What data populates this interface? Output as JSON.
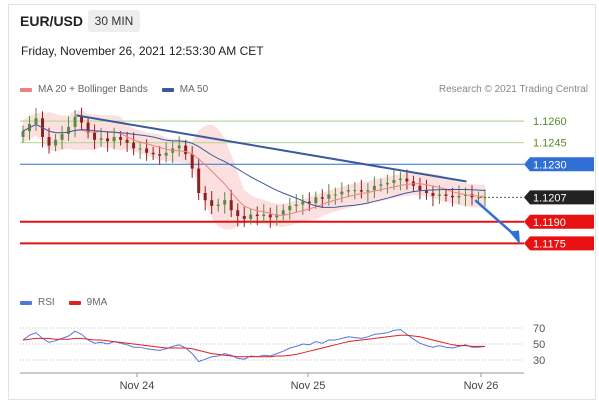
{
  "header": {
    "symbol": "EUR/USD",
    "timeframe": "30 MIN",
    "datetime": "Friday, November 26, 2021 12:53:30 AM CET",
    "credit": "Research © 2021 Trading Central"
  },
  "colors": {
    "ma20": "#f08080",
    "ma50": "#3a5a9e",
    "bollinger_fill": "#fbdada",
    "resistance": "#b9d99b",
    "pivot_blue": "#2f6fd6",
    "support_red": "#e81010",
    "price_badge": "#222222",
    "trendline": "#3a5a9e",
    "rsi": "#5577dd",
    "rsi_ma": "#dd2222",
    "candle_up": "#5a8a40",
    "candle_down": "#8a2020"
  },
  "legend": {
    "ma20_label": "MA 20 + Bollinger Bands",
    "ma50_label": "MA 50",
    "rsi_label": "RSI",
    "rsi_ma_label": "9MA"
  },
  "chart_data": [
    {
      "type": "line",
      "name": "price",
      "ylim": [
        1.1162,
        1.1274
      ],
      "x_ticks": [
        "Nov 24",
        "Nov 25",
        "Nov 26"
      ],
      "close_path": [
        1.1253,
        1.1258,
        1.1262,
        1.1249,
        1.1243,
        1.1247,
        1.1251,
        1.1256,
        1.1263,
        1.1259,
        1.1252,
        1.1247,
        1.1248,
        1.1246,
        1.1249,
        1.1247,
        1.1245,
        1.1241,
        1.1241,
        1.1238,
        1.1237,
        1.1236,
        1.1238,
        1.1241,
        1.1243,
        1.1237,
        1.1227,
        1.121,
        1.1205,
        1.1201,
        1.1202,
        1.1205,
        1.1198,
        1.1194,
        1.1192,
        1.1195,
        1.1194,
        1.1195,
        1.1193,
        1.1195,
        1.1198,
        1.1201,
        1.1202,
        1.1204,
        1.1203,
        1.1207,
        1.1206,
        1.1209,
        1.1209,
        1.1211,
        1.1212,
        1.1212,
        1.1211,
        1.1212,
        1.1215,
        1.1216,
        1.1217,
        1.1219,
        1.122,
        1.1218,
        1.1215,
        1.1212,
        1.121,
        1.1208,
        1.1209,
        1.1208,
        1.1207,
        1.1208,
        1.1209,
        1.1207,
        1.1207,
        1.1207
      ],
      "levels": [
        {
          "value": 1.126,
          "label": "1.1260",
          "kind": "resistance"
        },
        {
          "value": 1.1245,
          "label": "1.1245",
          "kind": "resistance"
        },
        {
          "value": 1.123,
          "label": "1.1230",
          "kind": "pivot"
        },
        {
          "value": 1.1207,
          "label": "1.1207",
          "kind": "last"
        },
        {
          "value": 1.119,
          "label": "1.1190",
          "kind": "support"
        },
        {
          "value": 1.1175,
          "label": "1.1175",
          "kind": "support"
        }
      ],
      "trendline": {
        "from": [
          0.12,
          1.1264
        ],
        "to": [
          0.95,
          1.1218
        ]
      },
      "forecast_arrow": {
        "from": [
          0.96,
          1.1205
        ],
        "to": [
          1.0,
          1.1177
        ]
      }
    },
    {
      "type": "line",
      "name": "rsi",
      "ylim": [
        20,
        80
      ],
      "y_ticks": [
        "70",
        "50",
        "30"
      ],
      "rsi": [
        55,
        61,
        64,
        57,
        52,
        54,
        57,
        60,
        66,
        62,
        55,
        51,
        52,
        50,
        53,
        51,
        49,
        46,
        46,
        44,
        43,
        42,
        44,
        47,
        49,
        45,
        38,
        28,
        31,
        34,
        35,
        38,
        36,
        32,
        31,
        35,
        34,
        36,
        35,
        38,
        41,
        45,
        47,
        50,
        49,
        53,
        51,
        55,
        55,
        57,
        59,
        58,
        57,
        59,
        62,
        63,
        64,
        67,
        68,
        62,
        56,
        51,
        48,
        46,
        48,
        46,
        45,
        47,
        49,
        46,
        46,
        47
      ],
      "rsi_ma": [
        55,
        56,
        57,
        57,
        57,
        56,
        56,
        56,
        57,
        57,
        56,
        55,
        55,
        54,
        53,
        52,
        51,
        50,
        49,
        48,
        47,
        46,
        45,
        45,
        45,
        45,
        44,
        42,
        40,
        38,
        37,
        36,
        35,
        34,
        34,
        34,
        34,
        34,
        34,
        35,
        35,
        36,
        37,
        39,
        41,
        43,
        45,
        47,
        49,
        51,
        53,
        54,
        55,
        56,
        57,
        58,
        59,
        60,
        61,
        61,
        60,
        59,
        57,
        55,
        53,
        51,
        49,
        48,
        48,
        47,
        47,
        47
      ]
    }
  ]
}
